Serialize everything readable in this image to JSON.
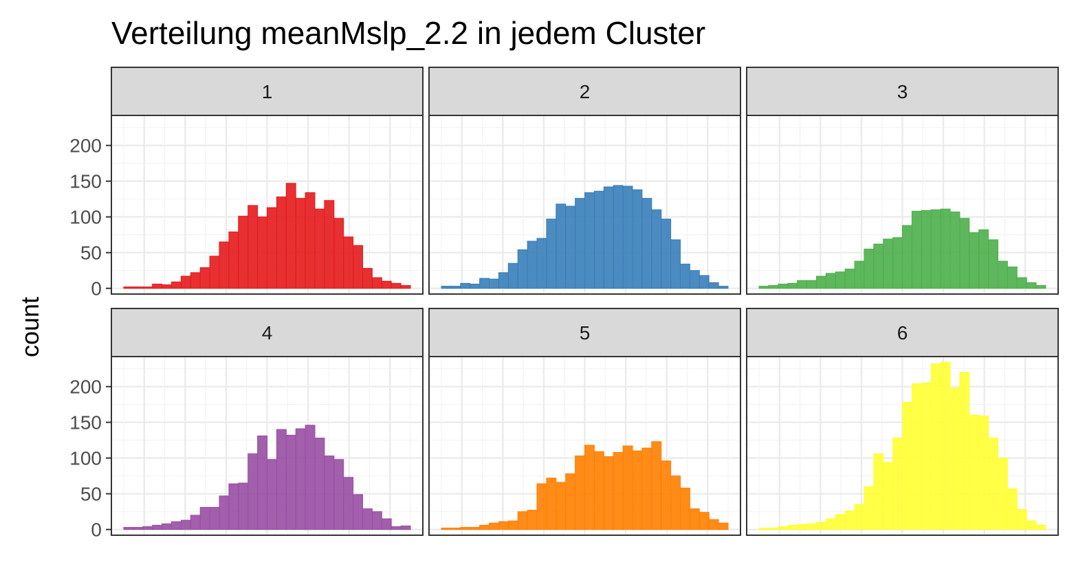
{
  "chart_data": {
    "type": "bar",
    "title": "Verteilung meanMslp_2.2 in jedem Cluster",
    "xlabel": "",
    "ylabel": "count",
    "ylim": [
      -8,
      242
    ],
    "yticks": [
      0,
      50,
      100,
      150,
      200
    ],
    "grid": true,
    "legend": "none",
    "panels": [
      {
        "label": "1",
        "color": "#e41a1c",
        "values": [
          2,
          2,
          2,
          6,
          5,
          9,
          17,
          22,
          29,
          45,
          65,
          79,
          101,
          116,
          100,
          113,
          128,
          147,
          126,
          134,
          111,
          123,
          98,
          72,
          60,
          28,
          15,
          10,
          7,
          4
        ]
      },
      {
        "label": "2",
        "color": "#377eb8",
        "values": [
          3,
          3,
          7,
          6,
          14,
          13,
          22,
          35,
          54,
          66,
          70,
          97,
          118,
          115,
          126,
          134,
          136,
          142,
          144,
          143,
          138,
          126,
          110,
          97,
          68,
          34,
          25,
          18,
          8,
          3
        ]
      },
      {
        "label": "3",
        "color": "#4daf4a",
        "values": [
          3,
          4,
          6,
          7,
          11,
          11,
          17,
          21,
          23,
          27,
          38,
          55,
          62,
          69,
          71,
          88,
          108,
          109,
          110,
          111,
          107,
          98,
          78,
          82,
          68,
          38,
          30,
          15,
          8,
          4
        ]
      },
      {
        "label": "4",
        "color": "#984ea3",
        "values": [
          3,
          3,
          4,
          6,
          8,
          11,
          13,
          20,
          31,
          31,
          47,
          64,
          65,
          106,
          131,
          98,
          140,
          132,
          141,
          146,
          128,
          103,
          98,
          73,
          49,
          29,
          25,
          15,
          4,
          5
        ]
      },
      {
        "label": "5",
        "color": "#ff7f00",
        "values": [
          2,
          2,
          3,
          3,
          6,
          9,
          11,
          12,
          25,
          27,
          64,
          72,
          66,
          78,
          103,
          118,
          109,
          102,
          108,
          117,
          110,
          114,
          123,
          96,
          75,
          58,
          29,
          24,
          14,
          9
        ]
      },
      {
        "label": "6",
        "color": "#ffff33",
        "values": [
          2,
          2,
          4,
          6,
          7,
          8,
          10,
          15,
          21,
          26,
          35,
          60,
          106,
          94,
          128,
          178,
          204,
          205,
          232,
          234,
          198,
          220,
          160,
          159,
          128,
          100,
          57,
          28,
          12,
          6
        ]
      }
    ]
  }
}
